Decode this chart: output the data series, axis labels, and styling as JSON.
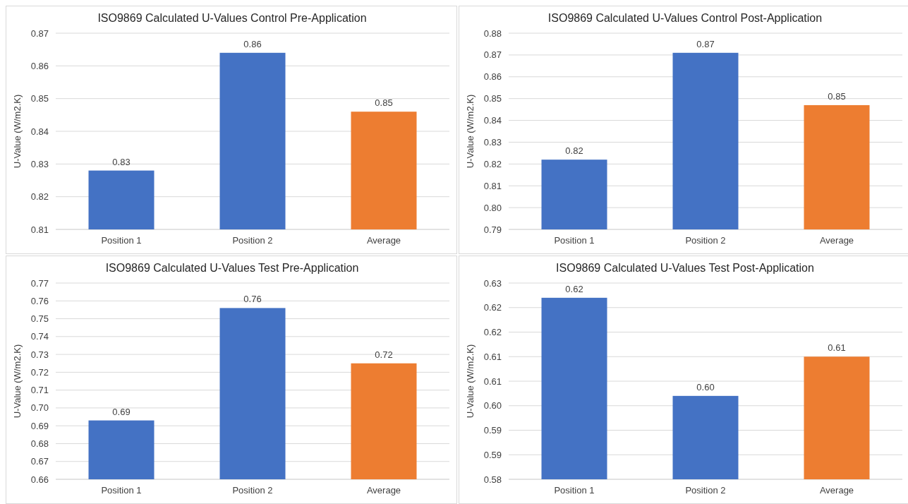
{
  "chart_data": [
    {
      "type": "bar",
      "title": "ISO9869 Calculated U-Values Control Pre-Application",
      "ylabel": "U-Value (W/m2.K)",
      "categories": [
        "Position 1",
        "Position 2",
        "Average"
      ],
      "values": [
        0.828,
        0.864,
        0.846
      ],
      "colors": [
        "#4472c4",
        "#4472c4",
        "#ed7d31"
      ],
      "value_labels": [
        "0.83",
        "0.86",
        "0.85"
      ],
      "ylim": [
        0.81,
        0.87
      ],
      "yticks": [
        {
          "value": 0.81,
          "label": "0.81"
        },
        {
          "value": 0.82,
          "label": "0.82"
        },
        {
          "value": 0.83,
          "label": "0.83"
        },
        {
          "value": 0.84,
          "label": "0.84"
        },
        {
          "value": 0.85,
          "label": "0.85"
        },
        {
          "value": 0.86,
          "label": "0.86"
        },
        {
          "value": 0.87,
          "label": "0.87"
        }
      ],
      "grid": "y"
    },
    {
      "type": "bar",
      "title": "ISO9869 Calculated U-Values Control Post-Application",
      "ylabel": "U-Value (W/m2.K)",
      "categories": [
        "Position 1",
        "Position 2",
        "Average"
      ],
      "values": [
        0.822,
        0.871,
        0.847
      ],
      "colors": [
        "#4472c4",
        "#4472c4",
        "#ed7d31"
      ],
      "value_labels": [
        "0.82",
        "0.87",
        "0.85"
      ],
      "ylim": [
        0.79,
        0.88
      ],
      "yticks": [
        {
          "value": 0.79,
          "label": "0.79"
        },
        {
          "value": 0.8,
          "label": "0.80"
        },
        {
          "value": 0.81,
          "label": "0.81"
        },
        {
          "value": 0.82,
          "label": "0.82"
        },
        {
          "value": 0.83,
          "label": "0.83"
        },
        {
          "value": 0.84,
          "label": "0.84"
        },
        {
          "value": 0.85,
          "label": "0.85"
        },
        {
          "value": 0.86,
          "label": "0.86"
        },
        {
          "value": 0.87,
          "label": "0.87"
        },
        {
          "value": 0.88,
          "label": "0.88"
        }
      ],
      "grid": "y"
    },
    {
      "type": "bar",
      "title": "ISO9869 Calculated U-Values Test Pre-Application",
      "ylabel": "U-Value (W/m2.K)",
      "categories": [
        "Position 1",
        "Position 2",
        "Average"
      ],
      "values": [
        0.693,
        0.756,
        0.725
      ],
      "colors": [
        "#4472c4",
        "#4472c4",
        "#ed7d31"
      ],
      "value_labels": [
        "0.69",
        "0.76",
        "0.72"
      ],
      "ylim": [
        0.66,
        0.77
      ],
      "yticks": [
        {
          "value": 0.66,
          "label": "0.66"
        },
        {
          "value": 0.67,
          "label": "0.67"
        },
        {
          "value": 0.68,
          "label": "0.68"
        },
        {
          "value": 0.69,
          "label": "0.69"
        },
        {
          "value": 0.7,
          "label": "0.70"
        },
        {
          "value": 0.71,
          "label": "0.71"
        },
        {
          "value": 0.72,
          "label": "0.72"
        },
        {
          "value": 0.73,
          "label": "0.73"
        },
        {
          "value": 0.74,
          "label": "0.74"
        },
        {
          "value": 0.75,
          "label": "0.75"
        },
        {
          "value": 0.76,
          "label": "0.76"
        },
        {
          "value": 0.77,
          "label": "0.77"
        }
      ],
      "grid": "y"
    },
    {
      "type": "bar",
      "title": "ISO9869 Calculated U-Values Test Post-Application",
      "ylabel": "U-Value (W/m2.K)",
      "categories": [
        "Position 1",
        "Position 2",
        "Average"
      ],
      "values": [
        0.622,
        0.602,
        0.61
      ],
      "colors": [
        "#4472c4",
        "#4472c4",
        "#ed7d31"
      ],
      "value_labels": [
        "0.62",
        "0.60",
        "0.61"
      ],
      "ylim": [
        0.585,
        0.625
      ],
      "yticks": [
        {
          "value": 0.585,
          "label": "0.58"
        },
        {
          "value": 0.59,
          "label": "0.59"
        },
        {
          "value": 0.595,
          "label": "0.59"
        },
        {
          "value": 0.6,
          "label": "0.60"
        },
        {
          "value": 0.605,
          "label": "0.61"
        },
        {
          "value": 0.61,
          "label": "0.61"
        },
        {
          "value": 0.615,
          "label": "0.62"
        },
        {
          "value": 0.62,
          "label": "0.62"
        },
        {
          "value": 0.625,
          "label": "0.63"
        }
      ],
      "grid": "y"
    }
  ]
}
